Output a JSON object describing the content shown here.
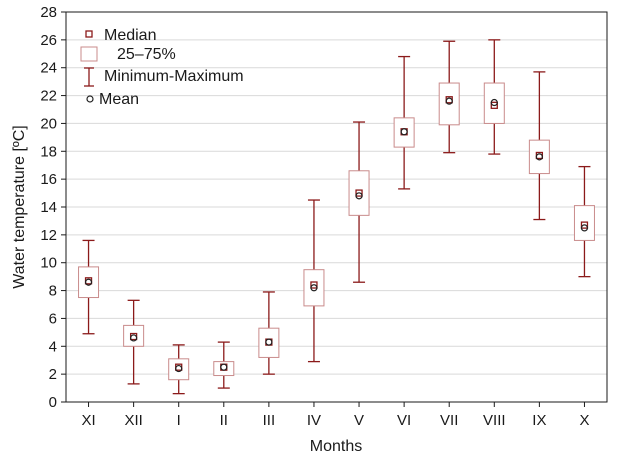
{
  "chart_data": {
    "type": "boxplot",
    "xlabel": "Months",
    "ylabel": "Water temperature [ºC]",
    "ylim": [
      0,
      28
    ],
    "yticks": [
      0,
      2,
      4,
      6,
      8,
      10,
      12,
      14,
      16,
      18,
      20,
      22,
      24,
      26,
      28
    ],
    "grid": true,
    "legend_position": "top-left",
    "colors": {
      "box": "#c98b8b",
      "whisker": "#8b1a1a",
      "median": "#8b1a1a",
      "mean": "#222222",
      "grid": "#d9d9d9"
    },
    "legend": {
      "median": "Median",
      "box": "25–75%",
      "whisker": "Minimum-Maximum",
      "mean": "Mean"
    },
    "categories": [
      "XI",
      "XII",
      "I",
      "II",
      "III",
      "IV",
      "V",
      "VI",
      "VII",
      "VIII",
      "IX",
      "X"
    ],
    "series": [
      {
        "category": "XI",
        "min": 4.9,
        "q1": 7.5,
        "median": 8.7,
        "mean": 8.6,
        "q3": 9.7,
        "max": 11.6
      },
      {
        "category": "XII",
        "min": 1.3,
        "q1": 4.0,
        "median": 4.7,
        "mean": 4.6,
        "q3": 5.5,
        "max": 7.3
      },
      {
        "category": "I",
        "min": 0.6,
        "q1": 1.6,
        "median": 2.5,
        "mean": 2.4,
        "q3": 3.1,
        "max": 4.1
      },
      {
        "category": "II",
        "min": 1.0,
        "q1": 1.9,
        "median": 2.5,
        "mean": 2.5,
        "q3": 2.9,
        "max": 4.3
      },
      {
        "category": "III",
        "min": 2.0,
        "q1": 3.2,
        "median": 4.3,
        "mean": 4.3,
        "q3": 5.3,
        "max": 7.9
      },
      {
        "category": "IV",
        "min": 2.9,
        "q1": 6.9,
        "median": 8.4,
        "mean": 8.2,
        "q3": 9.5,
        "max": 14.5
      },
      {
        "category": "V",
        "min": 8.6,
        "q1": 13.4,
        "median": 15.0,
        "mean": 14.8,
        "q3": 16.6,
        "max": 20.1
      },
      {
        "category": "VI",
        "min": 15.3,
        "q1": 18.3,
        "median": 19.4,
        "mean": 19.4,
        "q3": 20.4,
        "max": 24.8
      },
      {
        "category": "VII",
        "min": 17.9,
        "q1": 19.9,
        "median": 21.7,
        "mean": 21.6,
        "q3": 22.9,
        "max": 25.9
      },
      {
        "category": "VIII",
        "min": 17.8,
        "q1": 20.0,
        "median": 21.3,
        "mean": 21.5,
        "q3": 22.9,
        "max": 26.0
      },
      {
        "category": "IX",
        "min": 13.1,
        "q1": 16.4,
        "median": 17.7,
        "mean": 17.6,
        "q3": 18.8,
        "max": 23.7
      },
      {
        "category": "X",
        "min": 9.0,
        "q1": 11.6,
        "median": 12.7,
        "mean": 12.5,
        "q3": 14.1,
        "max": 16.9
      }
    ]
  }
}
